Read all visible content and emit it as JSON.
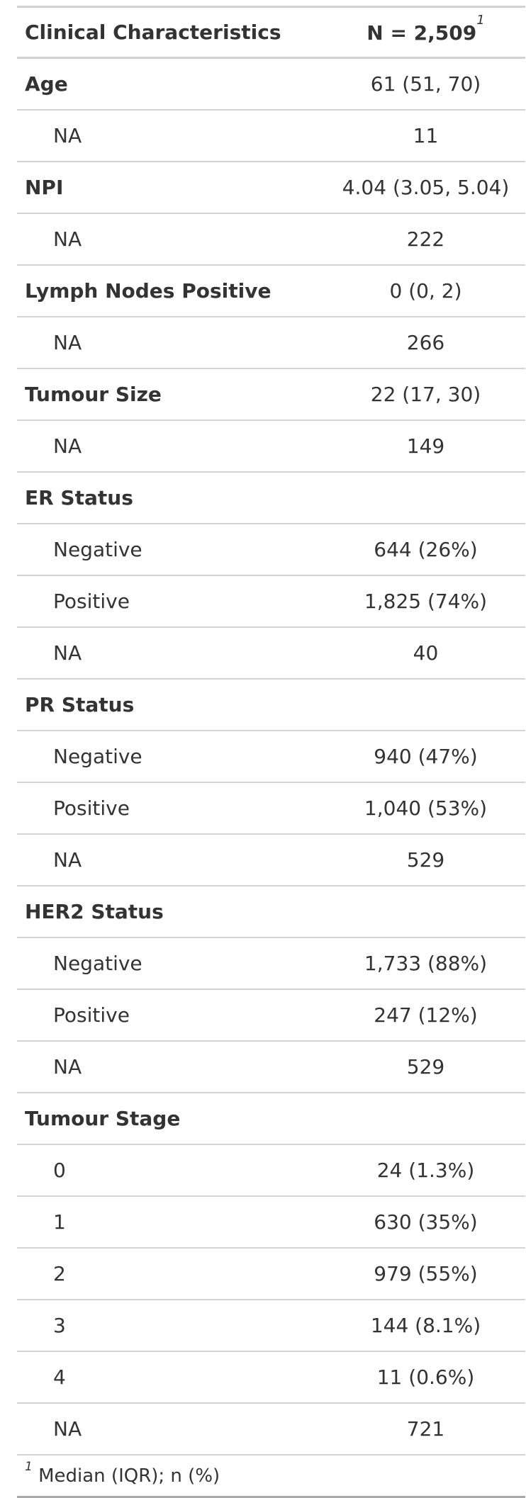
{
  "header": {
    "label": "Clinical Characteristics",
    "value": "N = 2,509",
    "footnote_mark": "1"
  },
  "rows": [
    {
      "label": "Age",
      "value": "61 (51, 70)"
    },
    {
      "label": "NA",
      "value": "11"
    },
    {
      "label": "NPI",
      "value": "4.04 (3.05, 5.04)"
    },
    {
      "label": "NA",
      "value": "222"
    },
    {
      "label": "Lymph Nodes Positive",
      "value": "0 (0, 2)"
    },
    {
      "label": "NA",
      "value": "266"
    },
    {
      "label": "Tumour Size",
      "value": "22 (17, 30)"
    },
    {
      "label": "NA",
      "value": "149"
    },
    {
      "label": "ER Status",
      "value": ""
    },
    {
      "label": "Negative",
      "value": "644 (26%)"
    },
    {
      "label": "Positive",
      "value": "1,825 (74%)"
    },
    {
      "label": "NA",
      "value": "40"
    },
    {
      "label": "PR Status",
      "value": ""
    },
    {
      "label": "Negative",
      "value": "940 (47%)"
    },
    {
      "label": "Positive",
      "value": "1,040 (53%)"
    },
    {
      "label": "NA",
      "value": "529"
    },
    {
      "label": "HER2 Status",
      "value": ""
    },
    {
      "label": "Negative",
      "value": "1,733 (88%)"
    },
    {
      "label": "Positive",
      "value": "247 (12%)"
    },
    {
      "label": "NA",
      "value": "529"
    },
    {
      "label": "Tumour Stage",
      "value": ""
    },
    {
      "label": "0",
      "value": "24 (1.3%)"
    },
    {
      "label": "1",
      "value": "630 (35%)"
    },
    {
      "label": "2",
      "value": "979 (55%)"
    },
    {
      "label": "3",
      "value": "144 (8.1%)"
    },
    {
      "label": "4",
      "value": "11 (0.6%)"
    },
    {
      "label": "NA",
      "value": "721"
    }
  ],
  "footnote": {
    "mark": "1",
    "text": "Median (IQR); n (%)"
  }
}
